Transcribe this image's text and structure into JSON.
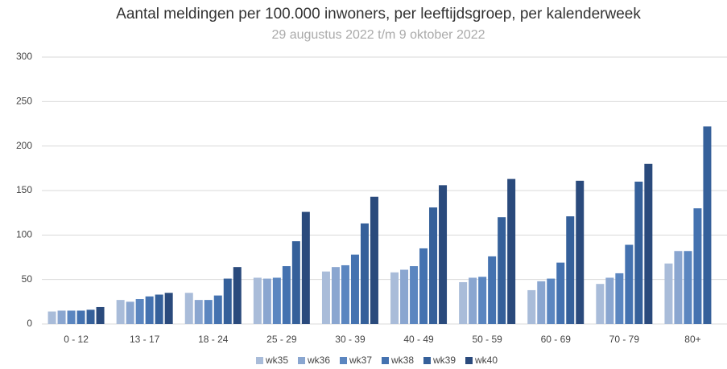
{
  "chart_data": {
    "type": "bar",
    "title": "Aantal meldingen per 100.000 inwoners, per leeftijdsgroep, per kalenderweek",
    "subtitle": "29 augustus 2022 t/m 9 oktober 2022",
    "categories": [
      "0 - 12",
      "13 - 17",
      "18 - 24",
      "25 - 29",
      "30 - 39",
      "40 - 49",
      "50 - 59",
      "60 - 69",
      "70 - 79",
      "80+"
    ],
    "series": [
      {
        "name": "wk35",
        "color": "#a9bcd9",
        "values": [
          14,
          27,
          35,
          52,
          59,
          58,
          47,
          38,
          45,
          68
        ]
      },
      {
        "name": "wk36",
        "color": "#8aa6d0",
        "values": [
          15,
          25,
          27,
          51,
          64,
          61,
          52,
          48,
          52,
          82
        ]
      },
      {
        "name": "wk37",
        "color": "#5b86c0",
        "values": [
          15,
          28,
          27,
          52,
          66,
          65,
          53,
          51,
          57,
          82
        ]
      },
      {
        "name": "wk38",
        "color": "#4472b0",
        "values": [
          15,
          31,
          32,
          65,
          78,
          85,
          76,
          69,
          89,
          130
        ]
      },
      {
        "name": "wk39",
        "color": "#35609a",
        "values": [
          16,
          33,
          51,
          93,
          113,
          131,
          120,
          121,
          160,
          222
        ]
      },
      {
        "name": "wk40",
        "color": "#2a4a7c",
        "values": [
          19,
          35,
          64,
          126,
          143,
          156,
          163,
          161,
          180,
          null
        ]
      }
    ],
    "ylim": [
      0,
      300
    ],
    "yticks": [
      0,
      50,
      100,
      150,
      200,
      250,
      300
    ],
    "grid": true,
    "legend": "bottom"
  }
}
